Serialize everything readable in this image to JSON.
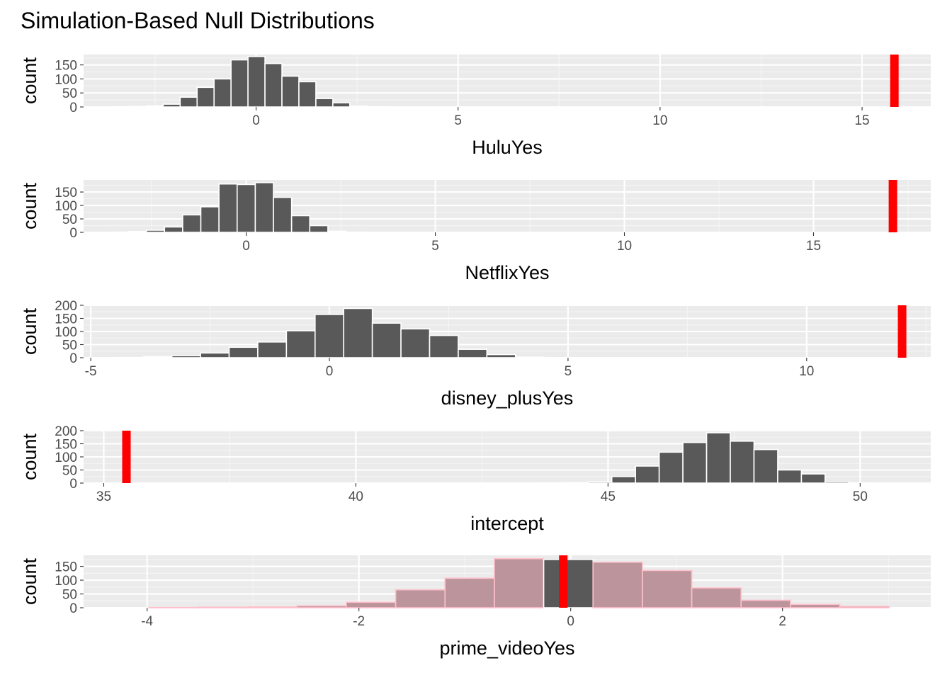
{
  "chart_data": {
    "title": "Simulation-Based Null Distributions",
    "ylabel": "count",
    "type": "bar",
    "panels": [
      {
        "xlabel": "HuluYes",
        "xlim": [
          -4.27,
          16.7
        ],
        "ylim": [
          0,
          187
        ],
        "xticks": [
          0,
          5,
          10,
          15
        ],
        "xtick_labels": [
          "0",
          "5",
          "10",
          "15"
        ],
        "yticks": [
          0,
          50,
          100,
          150
        ],
        "ytick_labels": [
          "0",
          "50",
          "100",
          "150"
        ],
        "bin_width": 0.42,
        "bin_centers": [
          -3.35,
          -2.93,
          -2.51,
          -2.09,
          -1.67,
          -1.25,
          -0.83,
          -0.41,
          0.01,
          0.43,
          0.85,
          1.27,
          1.69,
          2.11,
          2.53,
          2.95
        ],
        "counts": [
          1,
          2,
          4,
          10,
          35,
          70,
          100,
          168,
          180,
          155,
          110,
          90,
          30,
          15,
          3,
          1
        ],
        "observed": 15.8,
        "shade": false
      },
      {
        "xlabel": "NetflixYes",
        "xlim": [
          -4.3,
          18.1
        ],
        "ylim": [
          0,
          195
        ],
        "xticks": [
          0,
          5,
          10,
          15
        ],
        "xtick_labels": [
          "0",
          "5",
          "10",
          "15"
        ],
        "yticks": [
          0,
          50,
          100,
          150
        ],
        "ytick_labels": [
          "0",
          "50",
          "100",
          "150"
        ],
        "bin_width": 0.48,
        "bin_centers": [
          -3.36,
          -2.88,
          -2.4,
          -1.92,
          -1.44,
          -0.96,
          -0.48,
          0.0,
          0.48,
          0.96,
          1.44,
          1.92,
          2.4,
          2.88
        ],
        "counts": [
          1,
          3,
          8,
          20,
          65,
          95,
          180,
          178,
          185,
          130,
          62,
          25,
          4,
          1
        ],
        "observed": 17.1,
        "shade": false
      },
      {
        "xlabel": "disney_plusYes",
        "xlim": [
          -5.15,
          12.6
        ],
        "ylim": [
          0,
          200
        ],
        "xticks": [
          -5,
          0,
          5,
          10
        ],
        "xtick_labels": [
          "-5",
          "0",
          "5",
          "10"
        ],
        "yticks": [
          0,
          50,
          100,
          150,
          200
        ],
        "ytick_labels": [
          "0",
          "50",
          "100",
          "150",
          "200"
        ],
        "bin_width": 0.6,
        "bin_centers": [
          -4.2,
          -3.6,
          -3.0,
          -2.4,
          -1.8,
          -1.2,
          -0.6,
          0.0,
          0.6,
          1.2,
          1.8,
          2.4,
          3.0,
          3.6,
          4.2
        ],
        "counts": [
          1,
          4,
          8,
          18,
          40,
          60,
          103,
          165,
          188,
          132,
          110,
          85,
          32,
          12,
          2
        ],
        "observed": 12.0,
        "shade": false
      },
      {
        "xlabel": "intercept",
        "xlim": [
          34.6,
          51.4
        ],
        "ylim": [
          0,
          200
        ],
        "xticks": [
          35,
          40,
          45,
          50
        ],
        "xtick_labels": [
          "35",
          "40",
          "45",
          "50"
        ],
        "yticks": [
          0,
          50,
          100,
          150,
          200
        ],
        "ytick_labels": [
          "0",
          "50",
          "100",
          "150",
          "200"
        ],
        "bin_width": 0.47,
        "bin_centers": [
          43.9,
          44.37,
          44.84,
          45.31,
          45.78,
          46.25,
          46.72,
          47.19,
          47.66,
          48.13,
          48.6,
          49.07,
          49.54,
          50.01
        ],
        "counts": [
          1,
          2,
          5,
          25,
          65,
          118,
          155,
          192,
          160,
          128,
          50,
          35,
          6,
          1
        ],
        "observed": 35.45,
        "shade": false
      },
      {
        "xlabel": "prime_videoYes",
        "xlim": [
          -4.6,
          3.4
        ],
        "ylim": [
          0,
          190
        ],
        "xticks": [
          -4,
          -2,
          0,
          2
        ],
        "xtick_labels": [
          "-4",
          "-2",
          "0",
          "2"
        ],
        "yticks": [
          0,
          50,
          100,
          150
        ],
        "ytick_labels": [
          "0",
          "50",
          "100",
          "150"
        ],
        "bin_width": 0.466,
        "bin_centers": [
          -3.75,
          -3.284,
          -2.818,
          -2.352,
          -1.886,
          -1.42,
          -0.954,
          -0.488,
          -0.022,
          0.444,
          0.91,
          1.376,
          1.842,
          2.308,
          2.774
        ],
        "counts": [
          1,
          2,
          3,
          7,
          20,
          65,
          107,
          178,
          175,
          165,
          135,
          72,
          27,
          12,
          5
        ],
        "observed": -0.07,
        "shade": true,
        "shade_range": [
          -0.14,
          0.14
        ]
      }
    ]
  },
  "colors": {
    "panel_bg": "#ebebeb",
    "grid_major": "#ffffff",
    "grid_minor": "#f5f5f5",
    "bar_fill": "#595959",
    "bar_outline": "#ffffff",
    "observed_line": "#ff0000",
    "shade_fill": "#bc959c",
    "shade_outline": "#ffc0cb",
    "tick_mark": "#333333"
  }
}
